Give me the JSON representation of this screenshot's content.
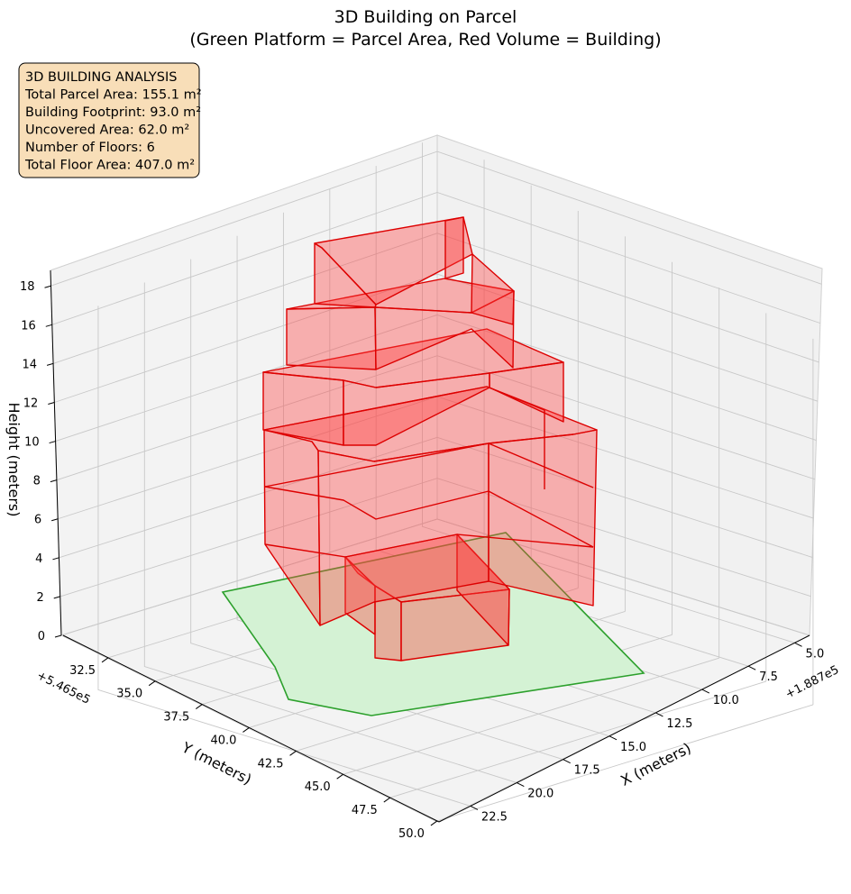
{
  "chart_data": {
    "type": "3d-polygons",
    "title_line1": "3D Building on Parcel",
    "title_line2": "(Green Platform = Parcel Area, Red Volume = Building)",
    "xlabel": "X (meters)",
    "ylabel": "Y (meters)",
    "zlabel": "Height (meters)",
    "x_offset": "+1.887e5",
    "y_offset": "+5.465e5",
    "x_ticks": [
      "5.0",
      "7.5",
      "10.0",
      "12.5",
      "15.0",
      "17.5",
      "20.0",
      "22.5"
    ],
    "y_ticks": [
      "32.5",
      "35.0",
      "37.5",
      "40.0",
      "42.5",
      "45.0",
      "47.5",
      "50.0"
    ],
    "z_ticks": [
      "0",
      "2",
      "4",
      "6",
      "8",
      "10",
      "12",
      "14",
      "16",
      "18"
    ],
    "info_box": [
      "3D BUILDING ANALYSIS",
      "Total Parcel Area: 155.1 m²",
      "Building Footprint: 93.0 m²",
      "Uncovered Area: 62.0 m²",
      "Number of Floors: 6",
      "Total Floor Area: 407.0 m²"
    ],
    "colors": {
      "parcel_fill": "#d4f2d4",
      "parcel_edge": "#2ca02c",
      "building_fill": "#ff4040",
      "building_edge": "#dd0000",
      "info_bg": "#f8deb8"
    }
  }
}
